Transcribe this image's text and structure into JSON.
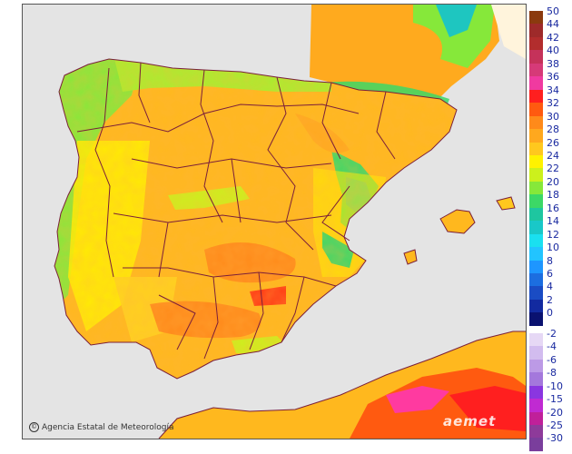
{
  "legend": {
    "positive": [
      {
        "label": "50",
        "color": "#8b3a0e"
      },
      {
        "label": "44",
        "color": "#9e2a2a"
      },
      {
        "label": "42",
        "color": "#b22d2d"
      },
      {
        "label": "40",
        "color": "#c5325a"
      },
      {
        "label": "38",
        "color": "#d63a78"
      },
      {
        "label": "36",
        "color": "#f03aa0"
      },
      {
        "label": "34",
        "color": "#ff1f1f"
      },
      {
        "label": "32",
        "color": "#ff5a10"
      },
      {
        "label": "30",
        "color": "#ff8a1a"
      },
      {
        "label": "28",
        "color": "#ffa81e"
      },
      {
        "label": "26",
        "color": "#ffc81e"
      },
      {
        "label": "24",
        "color": "#fff200"
      },
      {
        "label": "22",
        "color": "#ccf01c"
      },
      {
        "label": "20",
        "color": "#86e83a"
      },
      {
        "label": "18",
        "color": "#3cd866"
      },
      {
        "label": "16",
        "color": "#1ec6a0"
      },
      {
        "label": "14",
        "color": "#19c8c8"
      },
      {
        "label": "12",
        "color": "#1ae0f0"
      },
      {
        "label": "10",
        "color": "#22c4ff"
      },
      {
        "label": "8",
        "color": "#1e96ff"
      },
      {
        "label": "6",
        "color": "#1c6ee0"
      },
      {
        "label": "4",
        "color": "#1a4cc4"
      },
      {
        "label": "2",
        "color": "#122aa0"
      },
      {
        "label": "0",
        "color": "#0a1270"
      }
    ],
    "negative": [
      {
        "label": "-2",
        "color": "#e6d8f5"
      },
      {
        "label": "-4",
        "color": "#d2bcef"
      },
      {
        "label": "-6",
        "color": "#bc9ae6"
      },
      {
        "label": "-8",
        "color": "#a478dc"
      },
      {
        "label": "-10",
        "color": "#8a36e0"
      },
      {
        "label": "-15",
        "color": "#c02ad2"
      },
      {
        "label": "-20",
        "color": "#c0209a"
      },
      {
        "label": "-25",
        "color": "#8e3a9a"
      },
      {
        "label": "-30",
        "color": "#7a3e9c"
      }
    ]
  },
  "credit": "Agencia Estatal de Meteorología",
  "logo": "aemet",
  "map_colors": {
    "sea": "#e4e4e4",
    "land_base": "#ffb81e",
    "border": "#7a1f3a"
  }
}
